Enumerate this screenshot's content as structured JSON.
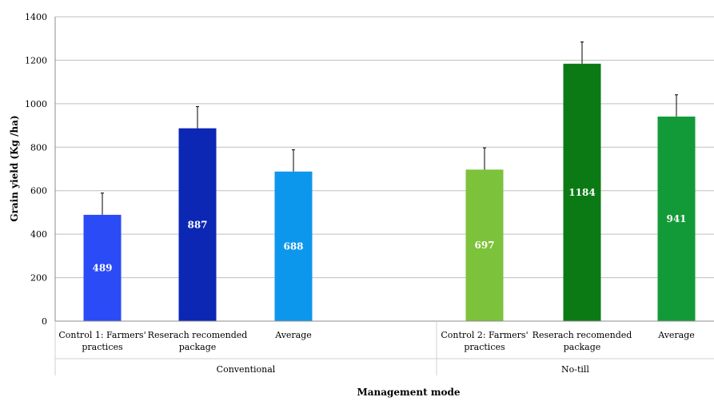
{
  "chart_data": {
    "type": "bar",
    "xlabel": "Management mode",
    "ylabel": "Grain yield (Kg /ha)",
    "ylim": [
      0,
      1400
    ],
    "yticks": [
      0,
      200,
      400,
      600,
      800,
      1000,
      1200,
      1400
    ],
    "grid": true,
    "groups": [
      {
        "name": "Conventional",
        "bars": [
          {
            "category": [
              "Control 1: Farmers'",
              "practices"
            ],
            "value": 489,
            "error": 100,
            "color": "#2a4bf5"
          },
          {
            "category": [
              "Reserach recomended",
              "package"
            ],
            "value": 887,
            "error": 100,
            "color": "#0c27b4"
          },
          {
            "category": [
              "Average"
            ],
            "value": 688,
            "error": 100,
            "color": "#0d97ec"
          }
        ]
      },
      {
        "name": "No-till",
        "bars": [
          {
            "category": [
              "Control 2: Farmers'",
              "practices"
            ],
            "value": 697,
            "error": 100,
            "color": "#7dc23b"
          },
          {
            "category": [
              "Reserach recomended",
              "package"
            ],
            "value": 1184,
            "error": 100,
            "color": "#0b7a15"
          },
          {
            "category": [
              "Average"
            ],
            "value": 941,
            "error": 100,
            "color": "#139a38"
          }
        ]
      }
    ]
  }
}
